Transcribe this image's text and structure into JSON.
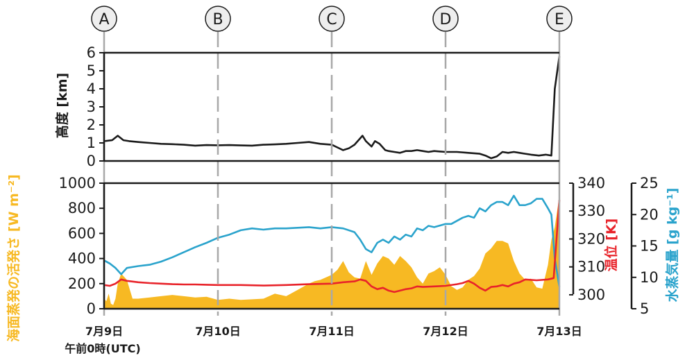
{
  "colors": {
    "height": "#1a1a1a",
    "evaporation": "#f7b923",
    "theta": "#e8232a",
    "vapor": "#2aa3cc",
    "dashed": "#a8a8a8",
    "marker_fill": "#eeeeee"
  },
  "markers": [
    "A",
    "B",
    "C",
    "D",
    "E"
  ],
  "x_axis": {
    "ticks": [
      "7月9日",
      "7月10日",
      "7月11日",
      "7月12日",
      "7月13日"
    ],
    "start_label": "午前0時(UTC)",
    "xlim": [
      0,
      4
    ]
  },
  "chart_data": [
    {
      "type": "line",
      "ylabel": "高度 [km]",
      "ylim": [
        0,
        6
      ],
      "yticks": [
        "0",
        "1",
        "2",
        "3",
        "4",
        "5",
        "6"
      ],
      "series": [
        {
          "x": [
            0,
            0.07,
            0.12,
            0.17,
            0.22,
            0.3,
            0.4,
            0.5,
            0.6,
            0.7,
            0.8,
            0.9,
            1.0,
            1.1,
            1.2,
            1.3,
            1.4,
            1.5,
            1.6,
            1.7,
            1.8,
            1.9,
            2.0,
            2.05,
            2.1,
            2.15,
            2.2,
            2.27,
            2.3,
            2.35,
            2.38,
            2.42,
            2.47,
            2.5,
            2.55,
            2.6,
            2.65,
            2.7,
            2.75,
            2.8,
            2.85,
            2.9,
            3.0,
            3.1,
            3.2,
            3.3,
            3.35,
            3.4,
            3.45,
            3.5,
            3.55,
            3.6,
            3.65,
            3.7,
            3.75,
            3.82,
            3.88,
            3.93,
            3.96,
            4.0
          ],
          "values": [
            1.1,
            1.15,
            1.4,
            1.15,
            1.1,
            1.05,
            1.0,
            0.95,
            0.93,
            0.9,
            0.85,
            0.88,
            0.87,
            0.88,
            0.86,
            0.85,
            0.9,
            0.92,
            0.95,
            1.0,
            1.05,
            0.95,
            0.9,
            0.75,
            0.6,
            0.7,
            0.9,
            1.4,
            1.1,
            0.8,
            1.1,
            0.95,
            0.6,
            0.55,
            0.5,
            0.45,
            0.55,
            0.55,
            0.6,
            0.55,
            0.5,
            0.55,
            0.5,
            0.5,
            0.45,
            0.4,
            0.3,
            0.15,
            0.25,
            0.5,
            0.45,
            0.5,
            0.45,
            0.4,
            0.35,
            0.3,
            0.35,
            0.3,
            4.0,
            5.8
          ]
        }
      ]
    },
    {
      "type": "area",
      "ylabel": "海面蒸発の活発さ [W m⁻²]",
      "ylim": [
        0,
        1000
      ],
      "yticks": [
        "0",
        "200",
        "400",
        "600",
        "800",
        "1000"
      ],
      "series": [
        {
          "x": [
            0,
            0.02,
            0.04,
            0.06,
            0.08,
            0.1,
            0.12,
            0.15,
            0.2,
            0.25,
            0.3,
            0.35,
            0.4,
            0.5,
            0.6,
            0.7,
            0.8,
            0.9,
            1.0,
            1.1,
            1.2,
            1.3,
            1.4,
            1.5,
            1.6,
            1.7,
            1.8,
            1.85,
            1.9,
            1.95,
            2.0,
            2.05,
            2.1,
            2.15,
            2.2,
            2.25,
            2.3,
            2.35,
            2.4,
            2.45,
            2.5,
            2.55,
            2.6,
            2.65,
            2.7,
            2.75,
            2.8,
            2.85,
            2.9,
            2.95,
            3.0,
            3.05,
            3.1,
            3.15,
            3.2,
            3.25,
            3.3,
            3.35,
            3.4,
            3.45,
            3.5,
            3.55,
            3.6,
            3.65,
            3.7,
            3.75,
            3.8,
            3.85,
            3.9,
            3.93,
            3.96,
            4.0
          ],
          "values": [
            80,
            60,
            120,
            40,
            30,
            80,
            200,
            280,
            230,
            80,
            80,
            85,
            90,
            100,
            110,
            100,
            90,
            95,
            70,
            80,
            70,
            75,
            80,
            120,
            100,
            150,
            200,
            220,
            230,
            250,
            270,
            310,
            380,
            290,
            250,
            240,
            380,
            270,
            360,
            420,
            400,
            350,
            420,
            380,
            330,
            250,
            200,
            280,
            300,
            330,
            270,
            180,
            150,
            170,
            230,
            260,
            320,
            440,
            480,
            540,
            540,
            520,
            380,
            280,
            230,
            240,
            170,
            160,
            350,
            550,
            650,
            900
          ]
        }
      ]
    },
    {
      "type": "line",
      "ylabel": "温位 [K]",
      "ylim": [
        295,
        340
      ],
      "yticks": [
        "300",
        "310",
        "320",
        "330",
        "340"
      ],
      "series": [
        {
          "x": [
            0,
            0.05,
            0.1,
            0.15,
            0.2,
            0.3,
            0.4,
            0.5,
            0.6,
            0.7,
            0.8,
            0.9,
            1.0,
            1.2,
            1.4,
            1.6,
            1.8,
            2.0,
            2.1,
            2.2,
            2.25,
            2.3,
            2.35,
            2.4,
            2.45,
            2.5,
            2.55,
            2.6,
            2.65,
            2.7,
            2.75,
            2.8,
            2.9,
            3.0,
            3.1,
            3.15,
            3.2,
            3.25,
            3.3,
            3.35,
            3.4,
            3.45,
            3.5,
            3.55,
            3.6,
            3.65,
            3.7,
            3.8,
            3.9,
            3.95,
            4.0
          ],
          "values": [
            303.5,
            303.2,
            304,
            305.5,
            305,
            304.5,
            304.2,
            304,
            303.8,
            303.7,
            303.7,
            303.6,
            303.5,
            303.5,
            303.3,
            303.5,
            303.8,
            304,
            304.5,
            304.8,
            305.5,
            305,
            303,
            302,
            302.5,
            301.5,
            301,
            301.5,
            302,
            302.3,
            303,
            302.8,
            303,
            303.2,
            303.8,
            304.2,
            305,
            304,
            302.5,
            301.5,
            302.8,
            303,
            303.5,
            303,
            304,
            304.5,
            305.5,
            305.2,
            305.5,
            306,
            334
          ]
        }
      ]
    },
    {
      "type": "line",
      "ylabel": "水蒸気量 [g kg⁻¹]",
      "ylim": [
        5,
        25
      ],
      "yticks": [
        "5",
        "10",
        "15",
        "20",
        "25"
      ],
      "series": [
        {
          "x": [
            0,
            0.05,
            0.1,
            0.15,
            0.2,
            0.3,
            0.4,
            0.5,
            0.6,
            0.7,
            0.8,
            0.9,
            1.0,
            1.1,
            1.2,
            1.3,
            1.4,
            1.5,
            1.6,
            1.7,
            1.8,
            1.9,
            2.0,
            2.1,
            2.2,
            2.25,
            2.3,
            2.35,
            2.4,
            2.45,
            2.5,
            2.55,
            2.6,
            2.65,
            2.7,
            2.75,
            2.8,
            2.85,
            2.9,
            3.0,
            3.05,
            3.1,
            3.15,
            3.2,
            3.25,
            3.3,
            3.35,
            3.4,
            3.45,
            3.5,
            3.55,
            3.6,
            3.65,
            3.7,
            3.75,
            3.8,
            3.85,
            3.9,
            3.93,
            3.96,
            4.0
          ],
          "values": [
            12.7,
            12.2,
            11.5,
            10.5,
            11.5,
            11.8,
            12,
            12.5,
            13.2,
            14,
            14.8,
            15.5,
            16.3,
            16.8,
            17.5,
            17.8,
            17.6,
            17.8,
            17.8,
            17.9,
            18,
            17.8,
            18,
            17.8,
            17.2,
            16,
            14.5,
            14,
            15.5,
            16,
            15.5,
            16.5,
            16,
            16.8,
            16.5,
            17.8,
            17.5,
            18.2,
            18,
            18.5,
            18.5,
            19,
            19.5,
            19.8,
            19.5,
            21,
            20.5,
            21.5,
            22,
            22,
            21.5,
            23,
            21.5,
            21.5,
            21.8,
            22.5,
            22.5,
            21,
            20,
            13,
            8.5
          ]
        }
      ]
    }
  ]
}
